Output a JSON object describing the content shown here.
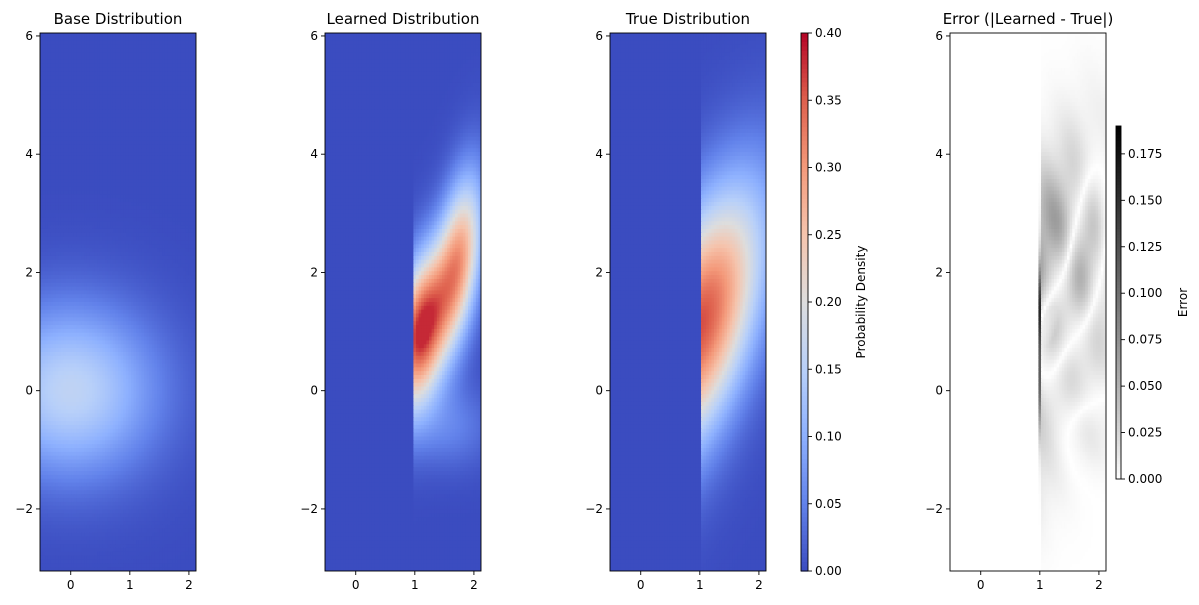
{
  "chart_data": [
    {
      "type": "heatmap",
      "title": "Base Distribution",
      "colormap": "coolwarm",
      "xlim": [
        -0.52,
        2.12
      ],
      "ylim": [
        -3.05,
        6.05
      ],
      "xticks": [
        0,
        1,
        2
      ],
      "yticks": [
        -2,
        0,
        2,
        4,
        6
      ],
      "xtick_labels": [
        "0",
        "1",
        "2"
      ],
      "ytick_labels": [
        "−2",
        "0",
        "2",
        "4",
        "6"
      ],
      "vmin": 0.0,
      "vmax": 0.4,
      "density": "2D standard normal centred at (0, 0), peak ≈ 0.16",
      "peak": 0.16
    },
    {
      "type": "heatmap",
      "title": "Learned Distribution",
      "colormap": "coolwarm",
      "xlim": [
        -0.52,
        2.12
      ],
      "ylim": [
        -3.05,
        6.05
      ],
      "xticks": [
        0,
        1,
        2
      ],
      "yticks": [
        -2,
        0,
        2,
        4,
        6
      ],
      "xtick_labels": [
        "0",
        "1",
        "2"
      ],
      "ytick_labels": [
        "−2",
        "0",
        "2",
        "4",
        "6"
      ],
      "vmin": 0.0,
      "vmax": 0.4,
      "density": "mass supported on x in [1, 2.1], peak ≈ 0.38 near (1.1, 1.0)",
      "peak": 0.38
    },
    {
      "type": "heatmap",
      "title": "True Distribution",
      "colormap": "coolwarm",
      "xlim": [
        -0.52,
        2.12
      ],
      "ylim": [
        -3.05,
        6.05
      ],
      "xticks": [
        0,
        1,
        2
      ],
      "yticks": [
        -2,
        0,
        2,
        4,
        6
      ],
      "xtick_labels": [
        "0",
        "1",
        "2"
      ],
      "ytick_labels": [
        "−2",
        "0",
        "2",
        "4",
        "6"
      ],
      "vmin": 0.0,
      "vmax": 0.4,
      "density": "mass supported on x in [1, 2.1], peak ≈ 0.36 at (1.0, 1.1)",
      "peak": 0.36,
      "colorbar": {
        "label": "Probability Density",
        "ticks": [
          0.0,
          0.05,
          0.1,
          0.15,
          0.2,
          0.25,
          0.3,
          0.35,
          0.4
        ],
        "tick_labels": [
          "0.00",
          "0.05",
          "0.10",
          "0.15",
          "0.20",
          "0.25",
          "0.30",
          "0.35",
          "0.40"
        ]
      }
    },
    {
      "type": "heatmap",
      "title": "Error (|Learned - True|)",
      "colormap": "Greys",
      "xlim": [
        -0.52,
        2.12
      ],
      "ylim": [
        -3.05,
        6.05
      ],
      "xticks": [
        0,
        1,
        2
      ],
      "yticks": [
        -2,
        0,
        2,
        4,
        6
      ],
      "xtick_labels": [
        "0",
        "1",
        "2"
      ],
      "ytick_labels": [
        "−2",
        "0",
        "2",
        "4",
        "6"
      ],
      "vmin": 0.0,
      "vmax": 0.19,
      "peak": 0.19,
      "colorbar": {
        "label": "Error",
        "ticks": [
          0.0,
          0.025,
          0.05,
          0.075,
          0.1,
          0.125,
          0.15,
          0.175
        ],
        "tick_labels": [
          "0.000",
          "0.025",
          "0.050",
          "0.075",
          "0.100",
          "0.125",
          "0.150",
          "0.175"
        ]
      }
    }
  ]
}
